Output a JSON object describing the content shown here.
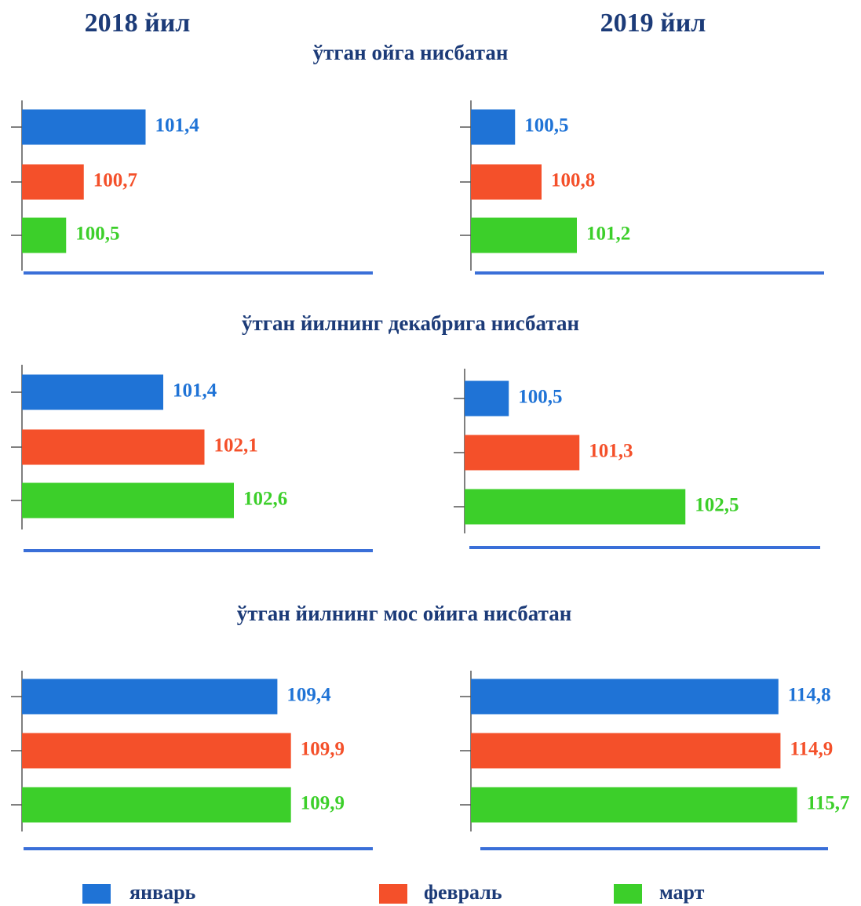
{
  "column_titles": [
    "2018 йил",
    "2019 йил"
  ],
  "section_titles": [
    "ўтган ойга нисбатан",
    "ўтган йилнинг декабрига нисбатан",
    "ўтган йилнинг мос ойига нисбатан"
  ],
  "legend": {
    "series": [
      {
        "name": "январь",
        "color": "#1f73d6"
      },
      {
        "name": "февраль",
        "color": "#f4502a"
      },
      {
        "name": "март",
        "color": "#3ccf2a"
      }
    ]
  },
  "chart_data": [
    {
      "type": "bar",
      "orientation": "horizontal",
      "values": [
        101.4,
        100.7,
        100.5
      ],
      "value_labels": [
        "101,4",
        "100,7",
        "100,5"
      ],
      "xlim": [
        100,
        104
      ]
    },
    {
      "type": "bar",
      "orientation": "horizontal",
      "values": [
        100.5,
        100.8,
        101.2
      ],
      "value_labels": [
        "100,5",
        "100,8",
        "101,2"
      ],
      "xlim": [
        100,
        104
      ]
    },
    {
      "type": "bar",
      "orientation": "horizontal",
      "values": [
        101.4,
        102.1,
        102.6
      ],
      "value_labels": [
        "101,4",
        "102,1",
        "102,6"
      ],
      "xlim": [
        99,
        105
      ]
    },
    {
      "type": "bar",
      "orientation": "horizontal",
      "values": [
        100.5,
        101.3,
        102.5
      ],
      "value_labels": [
        "100,5",
        "101,3",
        "102,5"
      ],
      "xlim": [
        100,
        104
      ]
    },
    {
      "type": "bar",
      "orientation": "horizontal",
      "values": [
        109.4,
        109.9,
        109.9
      ],
      "value_labels": [
        "109,4",
        "109,9",
        "109,9"
      ],
      "xlim": [
        100,
        113
      ]
    },
    {
      "type": "bar",
      "orientation": "horizontal",
      "values": [
        114.8,
        114.9,
        115.7
      ],
      "value_labels": [
        "114,8",
        "114,9",
        "115,7"
      ],
      "xlim": [
        100,
        117
      ]
    }
  ]
}
